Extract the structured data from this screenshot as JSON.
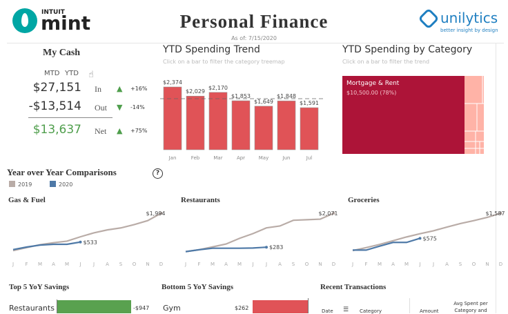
{
  "header": {
    "logo_small": "INTUIT",
    "logo_main": "mint",
    "title": "Personal Finance",
    "as_of": "As of: 7/15/2020",
    "brand": "unilytics",
    "brand_tagline": "better insight by design"
  },
  "cash": {
    "title": "My Cash",
    "toggle": [
      "MTD",
      "YTD"
    ],
    "rows": [
      {
        "amount": "$27,151",
        "label": "In",
        "dir": "up",
        "pct": "+16%"
      },
      {
        "amount": "-$13,514",
        "label": "Out",
        "dir": "down",
        "pct": "-14%"
      },
      {
        "amount": "$13,637",
        "label": "Net",
        "dir": "up",
        "pct": "+75%"
      }
    ],
    "colors": {
      "up": "#4f9e4c",
      "down": "#4f9e4c",
      "net": "#4f9e4c"
    }
  },
  "trend": {
    "title": "YTD Spending Trend",
    "subtitle": "Click on a bar to filter the category treemap",
    "chart_data": {
      "type": "bar",
      "categories": [
        "Jan",
        "Feb",
        "Mar",
        "Apr",
        "May",
        "Jun",
        "Jul"
      ],
      "values": [
        2374,
        2029,
        2170,
        1853,
        1649,
        1848,
        1591
      ],
      "labels": [
        "$2,374",
        "$2,029",
        "$2,170",
        "$1,853",
        "$1,649",
        "$1,848",
        "$1,591"
      ],
      "reference_line": 1931,
      "color": "#e05357"
    }
  },
  "treemap": {
    "title": "YTD Spending by Category",
    "subtitle": "Click on a bar to filter the trend",
    "chart_data": {
      "type": "treemap",
      "main": {
        "label": "Mortgage & Rent",
        "value": "$10,500.00 (78%)",
        "color": "#ad1438"
      },
      "other_color": "#ffb3a7"
    }
  },
  "yoy": {
    "title": "Year over Year Comparisons",
    "help": "?",
    "legend": [
      {
        "name": "2019",
        "color": "#b9aca7"
      },
      {
        "name": "2020",
        "color": "#4e79a7"
      }
    ],
    "months": [
      "J",
      "F",
      "M",
      "A",
      "M",
      "J",
      "J",
      "A",
      "S",
      "O",
      "N",
      "D"
    ],
    "charts": [
      {
        "title": "Gas & Fuel",
        "chart_data": {
          "type": "line",
          "y2019": [
            100,
            250,
            400,
            500,
            580,
            800,
            1000,
            1150,
            1250,
            1420,
            1620,
            1994
          ],
          "y2020": [
            150,
            280,
            380,
            420,
            420,
            533
          ],
          "label2019": "$1,994",
          "label2020": "$533"
        }
      },
      {
        "title": "Restaurants",
        "chart_data": {
          "type": "line",
          "y2019": [
            50,
            150,
            300,
            450,
            750,
            1000,
            1300,
            1400,
            1700,
            1730,
            1760,
            2071
          ],
          "y2020": [
            50,
            150,
            230,
            230,
            230,
            240,
            283
          ],
          "label2019": "$2,071",
          "label2020": "$283"
        }
      },
      {
        "title": "Groceries",
        "chart_data": {
          "type": "line",
          "y2019": [
            80,
            200,
            330,
            480,
            630,
            760,
            880,
            1030,
            1170,
            1290,
            1420,
            1587
          ],
          "y2020": [
            100,
            100,
            260,
            410,
            410,
            575
          ],
          "label2019": "$1,587",
          "label2020": "$575"
        }
      }
    ]
  },
  "top5": {
    "title": "Top 5 YoY Savings",
    "rows": [
      {
        "label": "Restaurants",
        "value": "-$947"
      }
    ],
    "color": "#59a14f"
  },
  "bottom5": {
    "title": "Bottom 5 YoY Savings",
    "rows": [
      {
        "label": "Gym",
        "value": "$262"
      }
    ],
    "color": "#e05357"
  },
  "transactions": {
    "title": "Recent Transactions",
    "columns": [
      "Date",
      "Category",
      "Amount",
      "Avg Spent per Category and"
    ]
  }
}
